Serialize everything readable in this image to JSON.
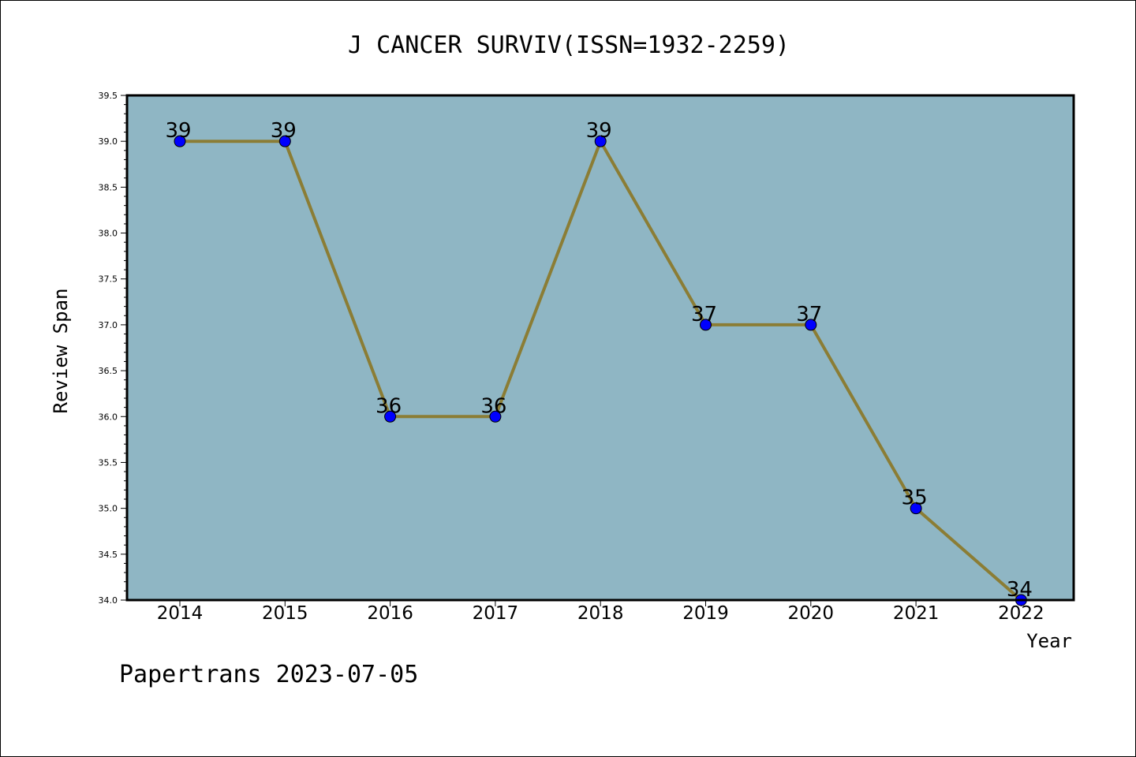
{
  "chart_data": {
    "type": "line",
    "title": "J CANCER SURVIV(ISSN=1932-2259)",
    "xlabel": "Year",
    "ylabel": "Review Span",
    "categories": [
      "2014",
      "2015",
      "2016",
      "2017",
      "2018",
      "2019",
      "2020",
      "2021",
      "2022"
    ],
    "series": [
      {
        "values": [
          39,
          39,
          36,
          36,
          39,
          37,
          37,
          35,
          34
        ]
      }
    ],
    "data_labels": [
      "39",
      "39",
      "36",
      "36",
      "39",
      "37",
      "37",
      "35",
      "34"
    ],
    "ylim": [
      34.0,
      39.5
    ],
    "yticks": [
      "34.0",
      "34.5",
      "35.0",
      "35.5",
      "36.0",
      "36.5",
      "37.0",
      "37.5",
      "38.0",
      "38.5",
      "39.0",
      "39.5"
    ],
    "grid": false,
    "colors": {
      "plot_background": "#8fb6c4",
      "line": "#8b7d35",
      "marker": "#0000ff"
    }
  },
  "footer": "Papertrans 2023-07-05"
}
